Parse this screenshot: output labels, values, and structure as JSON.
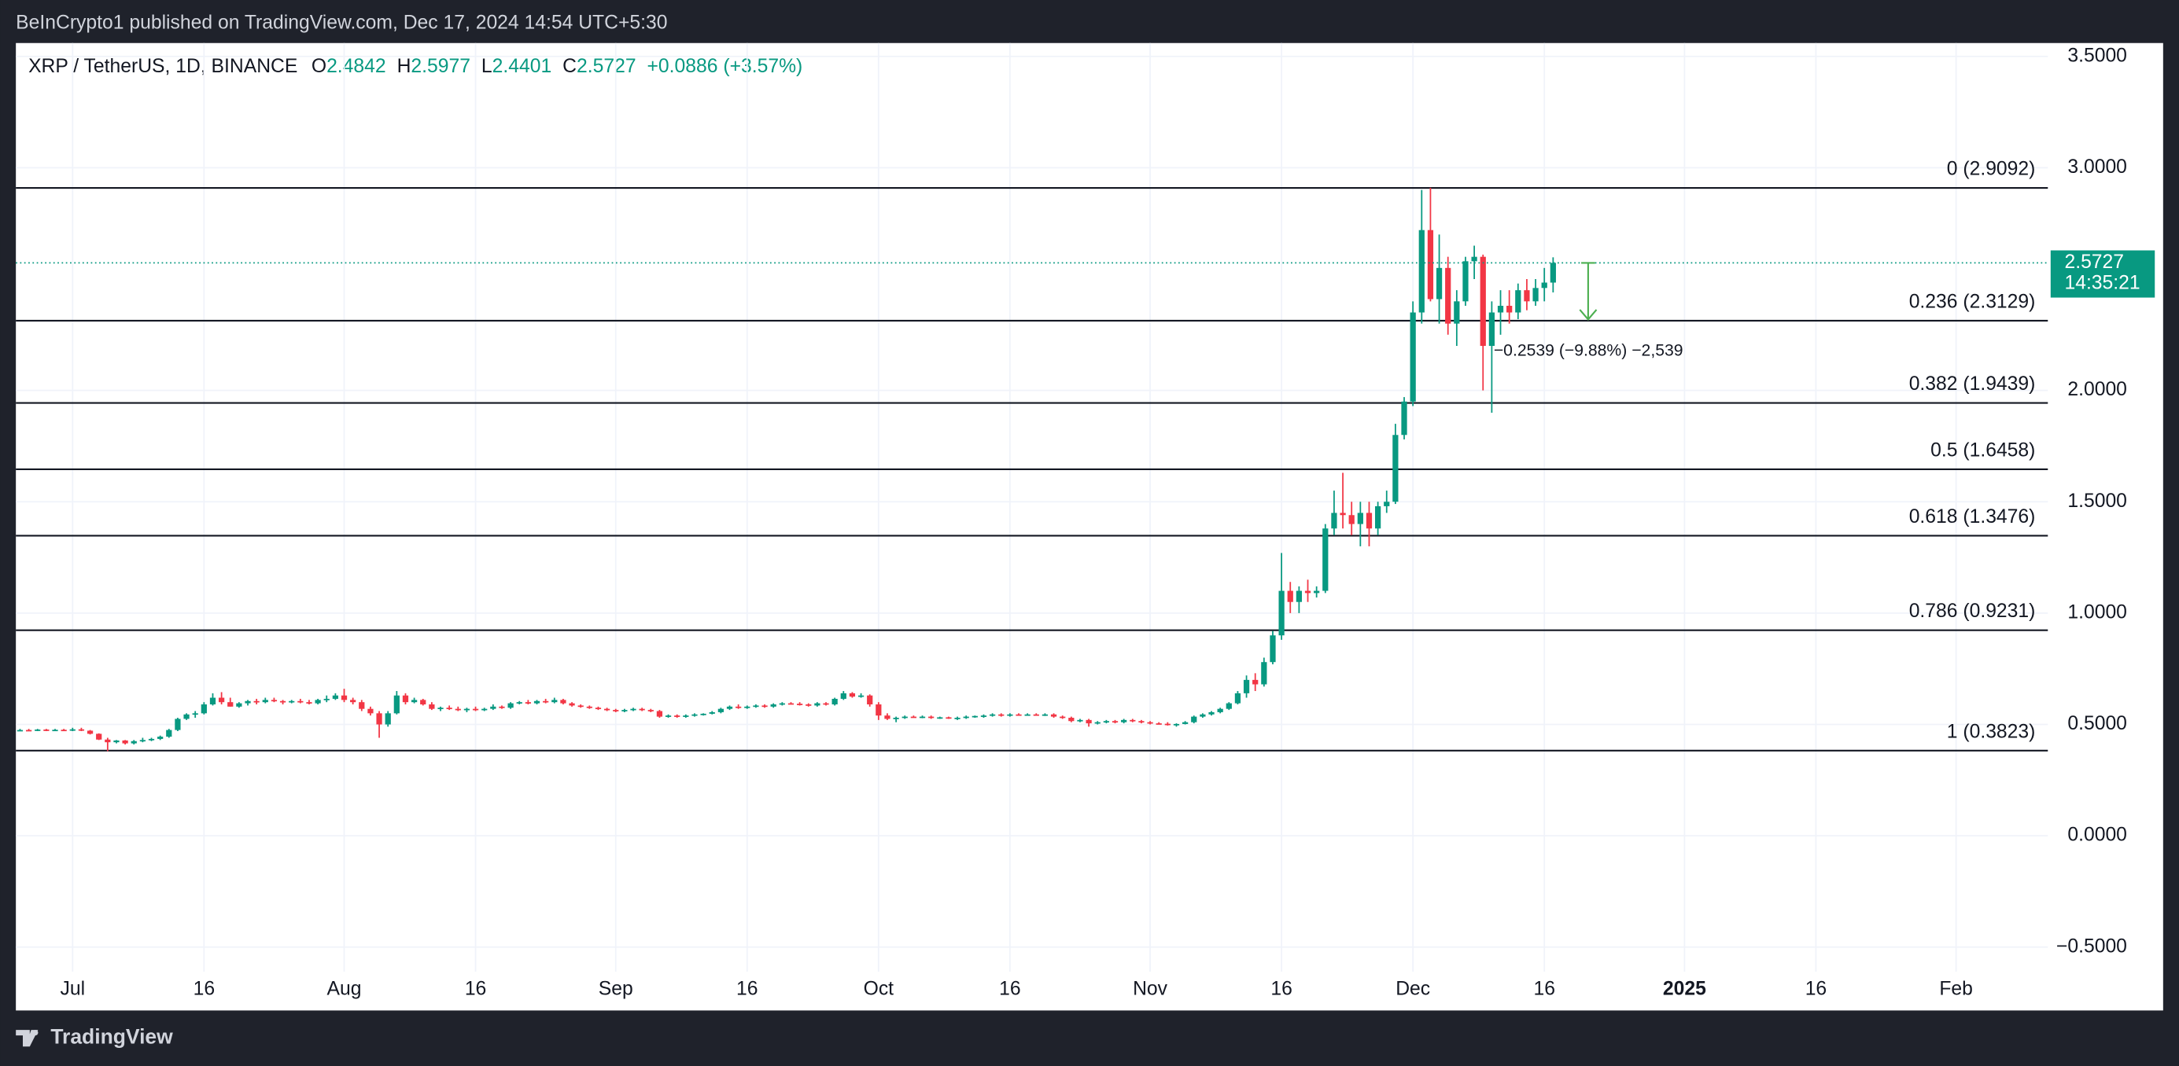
{
  "published": "BeInCrypto1 published on TradingView.com, Dec 17, 2024 14:54 UTC+5:30",
  "brand": "TradingView",
  "chart_data": {
    "type": "candlestick",
    "symbol": "XRP / TetherUS, 1D, BINANCE",
    "ohlc_labels": [
      "O",
      "H",
      "L",
      "C"
    ],
    "change": "+0.0886 (+3.57%)",
    "countdown": "14:35:21",
    "up_color": "#089981",
    "down_color": "#f23645",
    "grid": true,
    "xlim": [
      "2024-06-25",
      "2025-02-11"
    ],
    "xticks": [
      {
        "value": "2024-07-01",
        "label": "Jul"
      },
      {
        "value": "2024-07-16",
        "label": "16"
      },
      {
        "value": "2024-08-01",
        "label": "Aug"
      },
      {
        "value": "2024-08-16",
        "label": "16"
      },
      {
        "value": "2024-09-01",
        "label": "Sep"
      },
      {
        "value": "2024-09-16",
        "label": "16"
      },
      {
        "value": "2024-10-01",
        "label": "Oct"
      },
      {
        "value": "2024-10-16",
        "label": "16"
      },
      {
        "value": "2024-11-01",
        "label": "Nov"
      },
      {
        "value": "2024-11-16",
        "label": "16"
      },
      {
        "value": "2024-12-01",
        "label": "Dec"
      },
      {
        "value": "2024-12-16",
        "label": "16"
      },
      {
        "value": "2025-01-01",
        "label": "2025"
      },
      {
        "value": "2025-01-16",
        "label": "16"
      },
      {
        "value": "2025-02-01",
        "label": "Feb"
      }
    ],
    "ylim": [
      -0.61,
      3.56
    ],
    "yticks": [
      {
        "value": 3.5,
        "label": "3.5000"
      },
      {
        "value": 3,
        "label": "3.0000"
      },
      {
        "value": 2,
        "label": "2.0000"
      },
      {
        "value": 1.5,
        "label": "1.5000"
      },
      {
        "value": 1,
        "label": "1.0000"
      },
      {
        "value": 0.5,
        "label": "0.5000"
      },
      {
        "value": 0,
        "label": "0.0000"
      },
      {
        "value": -0.5,
        "label": "−0.5000"
      }
    ],
    "fib_levels": [
      {
        "value": 2.9092,
        "label": "0 (2.9092)"
      },
      {
        "value": 2.3129,
        "label": "0.236 (2.3129)"
      },
      {
        "value": 1.9439,
        "label": "0.382 (1.9439)"
      },
      {
        "value": 1.6458,
        "label": "0.5 (1.6458)"
      },
      {
        "value": 1.3476,
        "label": "0.618 (1.3476)"
      },
      {
        "value": 0.9231,
        "label": "0.786 (0.9231)"
      },
      {
        "value": 0.3823,
        "label": "1 (0.3823)"
      }
    ],
    "measure": {
      "x": "2024-12-21",
      "delta": -0.2539,
      "label": "−0.2539 (−9.88%) −2,539"
    },
    "x": [
      "2024-06-25",
      "2024-06-26",
      "2024-06-27",
      "2024-06-28",
      "2024-06-29",
      "2024-06-30",
      "2024-07-01",
      "2024-07-02",
      "2024-07-03",
      "2024-07-04",
      "2024-07-05",
      "2024-07-06",
      "2024-07-07",
      "2024-07-08",
      "2024-07-09",
      "2024-07-10",
      "2024-07-11",
      "2024-07-12",
      "2024-07-13",
      "2024-07-14",
      "2024-07-15",
      "2024-07-16",
      "2024-07-17",
      "2024-07-18",
      "2024-07-19",
      "2024-07-20",
      "2024-07-21",
      "2024-07-22",
      "2024-07-23",
      "2024-07-24",
      "2024-07-25",
      "2024-07-26",
      "2024-07-27",
      "2024-07-28",
      "2024-07-29",
      "2024-07-30",
      "2024-07-31",
      "2024-08-01",
      "2024-08-02",
      "2024-08-03",
      "2024-08-04",
      "2024-08-05",
      "2024-08-06",
      "2024-08-07",
      "2024-08-08",
      "2024-08-09",
      "2024-08-10",
      "2024-08-11",
      "2024-08-12",
      "2024-08-13",
      "2024-08-14",
      "2024-08-15",
      "2024-08-16",
      "2024-08-17",
      "2024-08-18",
      "2024-08-19",
      "2024-08-20",
      "2024-08-21",
      "2024-08-22",
      "2024-08-23",
      "2024-08-24",
      "2024-08-25",
      "2024-08-26",
      "2024-08-27",
      "2024-08-28",
      "2024-08-29",
      "2024-08-30",
      "2024-08-31",
      "2024-09-01",
      "2024-09-02",
      "2024-09-03",
      "2024-09-04",
      "2024-09-05",
      "2024-09-06",
      "2024-09-07",
      "2024-09-08",
      "2024-09-09",
      "2024-09-10",
      "2024-09-11",
      "2024-09-12",
      "2024-09-13",
      "2024-09-14",
      "2024-09-15",
      "2024-09-16",
      "2024-09-17",
      "2024-09-18",
      "2024-09-19",
      "2024-09-20",
      "2024-09-21",
      "2024-09-22",
      "2024-09-23",
      "2024-09-24",
      "2024-09-25",
      "2024-09-26",
      "2024-09-27",
      "2024-09-28",
      "2024-09-29",
      "2024-09-30",
      "2024-10-01",
      "2024-10-02",
      "2024-10-03",
      "2024-10-04",
      "2024-10-05",
      "2024-10-06",
      "2024-10-07",
      "2024-10-08",
      "2024-10-09",
      "2024-10-10",
      "2024-10-11",
      "2024-10-12",
      "2024-10-13",
      "2024-10-14",
      "2024-10-15",
      "2024-10-16",
      "2024-10-17",
      "2024-10-18",
      "2024-10-19",
      "2024-10-20",
      "2024-10-21",
      "2024-10-22",
      "2024-10-23",
      "2024-10-24",
      "2024-10-25",
      "2024-10-26",
      "2024-10-27",
      "2024-10-28",
      "2024-10-29",
      "2024-10-30",
      "2024-10-31",
      "2024-11-01",
      "2024-11-02",
      "2024-11-03",
      "2024-11-04",
      "2024-11-05",
      "2024-11-06",
      "2024-11-07",
      "2024-11-08",
      "2024-11-09",
      "2024-11-10",
      "2024-11-11",
      "2024-11-12",
      "2024-11-13",
      "2024-11-14",
      "2024-11-15",
      "2024-11-16",
      "2024-11-17",
      "2024-11-18",
      "2024-11-19",
      "2024-11-20",
      "2024-11-21",
      "2024-11-22",
      "2024-11-23",
      "2024-11-24",
      "2024-11-25",
      "2024-11-26",
      "2024-11-27",
      "2024-11-28",
      "2024-11-29",
      "2024-11-30",
      "2024-12-01",
      "2024-12-02",
      "2024-12-03",
      "2024-12-04",
      "2024-12-05",
      "2024-12-06",
      "2024-12-07",
      "2024-12-08",
      "2024-12-09",
      "2024-12-10",
      "2024-12-11",
      "2024-12-12",
      "2024-12-13",
      "2024-12-14",
      "2024-12-15",
      "2024-12-16",
      "2024-12-17"
    ],
    "ohlc": [
      [
        0.47,
        0.48,
        0.47,
        0.475
      ],
      [
        0.475,
        0.48,
        0.47,
        0.474
      ],
      [
        0.474,
        0.48,
        0.47,
        0.477
      ],
      [
        0.477,
        0.48,
        0.47,
        0.475
      ],
      [
        0.475,
        0.48,
        0.47,
        0.476
      ],
      [
        0.476,
        0.48,
        0.47,
        0.474
      ],
      [
        0.474,
        0.485,
        0.47,
        0.478
      ],
      [
        0.478,
        0.485,
        0.47,
        0.472
      ],
      [
        0.472,
        0.475,
        0.455,
        0.458
      ],
      [
        0.458,
        0.46,
        0.43,
        0.432
      ],
      [
        0.432,
        0.44,
        0.38,
        0.42
      ],
      [
        0.42,
        0.43,
        0.415,
        0.428
      ],
      [
        0.428,
        0.43,
        0.41,
        0.415
      ],
      [
        0.415,
        0.43,
        0.41,
        0.425
      ],
      [
        0.425,
        0.44,
        0.42,
        0.43
      ],
      [
        0.43,
        0.44,
        0.425,
        0.435
      ],
      [
        0.435,
        0.45,
        0.43,
        0.445
      ],
      [
        0.445,
        0.48,
        0.44,
        0.475
      ],
      [
        0.475,
        0.53,
        0.47,
        0.525
      ],
      [
        0.525,
        0.55,
        0.52,
        0.545
      ],
      [
        0.545,
        0.56,
        0.53,
        0.55
      ],
      [
        0.55,
        0.6,
        0.545,
        0.59
      ],
      [
        0.59,
        0.64,
        0.585,
        0.62
      ],
      [
        0.62,
        0.645,
        0.59,
        0.6
      ],
      [
        0.6,
        0.62,
        0.58,
        0.58
      ],
      [
        0.58,
        0.6,
        0.575,
        0.595
      ],
      [
        0.595,
        0.61,
        0.585,
        0.605
      ],
      [
        0.605,
        0.615,
        0.59,
        0.6
      ],
      [
        0.6,
        0.62,
        0.595,
        0.61
      ],
      [
        0.61,
        0.62,
        0.6,
        0.605
      ],
      [
        0.605,
        0.61,
        0.59,
        0.6
      ],
      [
        0.6,
        0.61,
        0.595,
        0.605
      ],
      [
        0.605,
        0.615,
        0.595,
        0.6
      ],
      [
        0.6,
        0.61,
        0.59,
        0.595
      ],
      [
        0.595,
        0.615,
        0.59,
        0.61
      ],
      [
        0.61,
        0.63,
        0.6,
        0.615
      ],
      [
        0.615,
        0.64,
        0.61,
        0.63
      ],
      [
        0.63,
        0.66,
        0.6,
        0.61
      ],
      [
        0.61,
        0.62,
        0.59,
        0.6
      ],
      [
        0.6,
        0.61,
        0.56,
        0.57
      ],
      [
        0.57,
        0.58,
        0.54,
        0.55
      ],
      [
        0.55,
        0.56,
        0.44,
        0.5
      ],
      [
        0.5,
        0.56,
        0.49,
        0.55
      ],
      [
        0.55,
        0.65,
        0.545,
        0.63
      ],
      [
        0.63,
        0.64,
        0.59,
        0.6
      ],
      [
        0.6,
        0.62,
        0.595,
        0.61
      ],
      [
        0.61,
        0.615,
        0.585,
        0.59
      ],
      [
        0.59,
        0.6,
        0.565,
        0.57
      ],
      [
        0.57,
        0.58,
        0.56,
        0.575
      ],
      [
        0.575,
        0.585,
        0.565,
        0.57
      ],
      [
        0.57,
        0.58,
        0.56,
        0.565
      ],
      [
        0.565,
        0.575,
        0.555,
        0.57
      ],
      [
        0.57,
        0.58,
        0.56,
        0.565
      ],
      [
        0.565,
        0.575,
        0.56,
        0.57
      ],
      [
        0.57,
        0.59,
        0.565,
        0.58
      ],
      [
        0.58,
        0.585,
        0.57,
        0.575
      ],
      [
        0.575,
        0.6,
        0.57,
        0.595
      ],
      [
        0.595,
        0.605,
        0.59,
        0.6
      ],
      [
        0.6,
        0.61,
        0.59,
        0.595
      ],
      [
        0.595,
        0.61,
        0.59,
        0.605
      ],
      [
        0.605,
        0.615,
        0.595,
        0.6
      ],
      [
        0.6,
        0.62,
        0.595,
        0.61
      ],
      [
        0.61,
        0.615,
        0.59,
        0.595
      ],
      [
        0.595,
        0.6,
        0.58,
        0.585
      ],
      [
        0.585,
        0.59,
        0.575,
        0.58
      ],
      [
        0.58,
        0.585,
        0.57,
        0.575
      ],
      [
        0.575,
        0.58,
        0.565,
        0.57
      ],
      [
        0.57,
        0.575,
        0.56,
        0.565
      ],
      [
        0.565,
        0.57,
        0.555,
        0.56
      ],
      [
        0.56,
        0.57,
        0.555,
        0.565
      ],
      [
        0.565,
        0.575,
        0.56,
        0.57
      ],
      [
        0.57,
        0.575,
        0.56,
        0.565
      ],
      [
        0.565,
        0.57,
        0.555,
        0.56
      ],
      [
        0.56,
        0.565,
        0.53,
        0.535
      ],
      [
        0.535,
        0.545,
        0.53,
        0.54
      ],
      [
        0.54,
        0.545,
        0.53,
        0.535
      ],
      [
        0.535,
        0.545,
        0.53,
        0.54
      ],
      [
        0.54,
        0.55,
        0.535,
        0.545
      ],
      [
        0.545,
        0.55,
        0.54,
        0.548
      ],
      [
        0.548,
        0.56,
        0.545,
        0.555
      ],
      [
        0.555,
        0.575,
        0.55,
        0.57
      ],
      [
        0.57,
        0.585,
        0.565,
        0.58
      ],
      [
        0.58,
        0.59,
        0.57,
        0.575
      ],
      [
        0.575,
        0.585,
        0.57,
        0.58
      ],
      [
        0.58,
        0.59,
        0.575,
        0.585
      ],
      [
        0.585,
        0.59,
        0.575,
        0.58
      ],
      [
        0.58,
        0.595,
        0.575,
        0.59
      ],
      [
        0.59,
        0.6,
        0.585,
        0.595
      ],
      [
        0.595,
        0.6,
        0.59,
        0.593
      ],
      [
        0.593,
        0.6,
        0.585,
        0.59
      ],
      [
        0.59,
        0.595,
        0.58,
        0.585
      ],
      [
        0.585,
        0.6,
        0.58,
        0.595
      ],
      [
        0.595,
        0.6,
        0.585,
        0.59
      ],
      [
        0.59,
        0.62,
        0.585,
        0.615
      ],
      [
        0.615,
        0.65,
        0.61,
        0.64
      ],
      [
        0.64,
        0.645,
        0.62,
        0.625
      ],
      [
        0.625,
        0.64,
        0.62,
        0.63
      ],
      [
        0.63,
        0.635,
        0.58,
        0.59
      ],
      [
        0.59,
        0.6,
        0.52,
        0.54
      ],
      [
        0.54,
        0.55,
        0.52,
        0.525
      ],
      [
        0.525,
        0.535,
        0.51,
        0.53
      ],
      [
        0.53,
        0.54,
        0.525,
        0.535
      ],
      [
        0.535,
        0.54,
        0.53,
        0.532
      ],
      [
        0.532,
        0.54,
        0.528,
        0.535
      ],
      [
        0.535,
        0.54,
        0.525,
        0.53
      ],
      [
        0.53,
        0.535,
        0.525,
        0.532
      ],
      [
        0.532,
        0.535,
        0.525,
        0.528
      ],
      [
        0.528,
        0.535,
        0.52,
        0.53
      ],
      [
        0.53,
        0.54,
        0.525,
        0.535
      ],
      [
        0.535,
        0.54,
        0.53,
        0.538
      ],
      [
        0.538,
        0.545,
        0.53,
        0.54
      ],
      [
        0.54,
        0.55,
        0.535,
        0.545
      ],
      [
        0.545,
        0.55,
        0.535,
        0.54
      ],
      [
        0.54,
        0.55,
        0.535,
        0.545
      ],
      [
        0.545,
        0.55,
        0.54,
        0.543
      ],
      [
        0.543,
        0.55,
        0.54,
        0.545
      ],
      [
        0.545,
        0.55,
        0.54,
        0.542
      ],
      [
        0.542,
        0.55,
        0.538,
        0.545
      ],
      [
        0.545,
        0.55,
        0.53,
        0.535
      ],
      [
        0.535,
        0.54,
        0.525,
        0.53
      ],
      [
        0.53,
        0.535,
        0.51,
        0.515
      ],
      [
        0.515,
        0.525,
        0.51,
        0.52
      ],
      [
        0.52,
        0.525,
        0.49,
        0.505
      ],
      [
        0.505,
        0.515,
        0.5,
        0.51
      ],
      [
        0.51,
        0.52,
        0.505,
        0.515
      ],
      [
        0.515,
        0.52,
        0.505,
        0.51
      ],
      [
        0.51,
        0.525,
        0.505,
        0.52
      ],
      [
        0.52,
        0.525,
        0.51,
        0.515
      ],
      [
        0.515,
        0.52,
        0.505,
        0.51
      ],
      [
        0.51,
        0.515,
        0.5,
        0.505
      ],
      [
        0.505,
        0.51,
        0.5,
        0.503
      ],
      [
        0.503,
        0.51,
        0.495,
        0.5
      ],
      [
        0.5,
        0.505,
        0.49,
        0.502
      ],
      [
        0.502,
        0.515,
        0.5,
        0.51
      ],
      [
        0.51,
        0.54,
        0.505,
        0.535
      ],
      [
        0.535,
        0.55,
        0.53,
        0.545
      ],
      [
        0.545,
        0.56,
        0.54,
        0.555
      ],
      [
        0.555,
        0.575,
        0.55,
        0.57
      ],
      [
        0.57,
        0.6,
        0.565,
        0.595
      ],
      [
        0.595,
        0.65,
        0.59,
        0.64
      ],
      [
        0.64,
        0.72,
        0.62,
        0.7
      ],
      [
        0.7,
        0.73,
        0.65,
        0.68
      ],
      [
        0.68,
        0.8,
        0.67,
        0.78
      ],
      [
        0.78,
        0.92,
        0.77,
        0.9
      ],
      [
        0.9,
        1.27,
        0.88,
        1.1
      ],
      [
        1.1,
        1.14,
        1.0,
        1.05
      ],
      [
        1.05,
        1.12,
        1.0,
        1.1
      ],
      [
        1.1,
        1.15,
        1.05,
        1.09
      ],
      [
        1.09,
        1.12,
        1.07,
        1.1
      ],
      [
        1.1,
        1.4,
        1.09,
        1.38
      ],
      [
        1.38,
        1.55,
        1.35,
        1.45
      ],
      [
        1.45,
        1.63,
        1.38,
        1.44
      ],
      [
        1.44,
        1.5,
        1.35,
        1.4
      ],
      [
        1.4,
        1.5,
        1.3,
        1.45
      ],
      [
        1.45,
        1.5,
        1.3,
        1.38
      ],
      [
        1.38,
        1.5,
        1.35,
        1.48
      ],
      [
        1.48,
        1.55,
        1.45,
        1.5
      ],
      [
        1.5,
        1.85,
        1.49,
        1.8
      ],
      [
        1.8,
        1.97,
        1.78,
        1.95
      ],
      [
        1.95,
        2.4,
        1.93,
        2.35
      ],
      [
        2.35,
        2.9,
        2.3,
        2.72
      ],
      [
        2.72,
        2.91,
        2.4,
        2.41
      ],
      [
        2.41,
        2.7,
        2.3,
        2.55
      ],
      [
        2.55,
        2.6,
        2.25,
        2.3
      ],
      [
        2.3,
        2.45,
        2.2,
        2.4
      ],
      [
        2.4,
        2.6,
        2.38,
        2.58
      ],
      [
        2.58,
        2.65,
        2.5,
        2.6
      ],
      [
        2.6,
        2.61,
        2.0,
        2.2
      ],
      [
        2.2,
        2.4,
        1.9,
        2.35
      ],
      [
        2.35,
        2.45,
        2.25,
        2.38
      ],
      [
        2.38,
        2.45,
        2.3,
        2.35
      ],
      [
        2.35,
        2.48,
        2.32,
        2.45
      ],
      [
        2.45,
        2.5,
        2.36,
        2.4
      ],
      [
        2.4,
        2.5,
        2.38,
        2.46
      ],
      [
        2.46,
        2.55,
        2.4,
        2.4842
      ],
      [
        2.4842,
        2.5977,
        2.4401,
        2.5727
      ]
    ]
  }
}
